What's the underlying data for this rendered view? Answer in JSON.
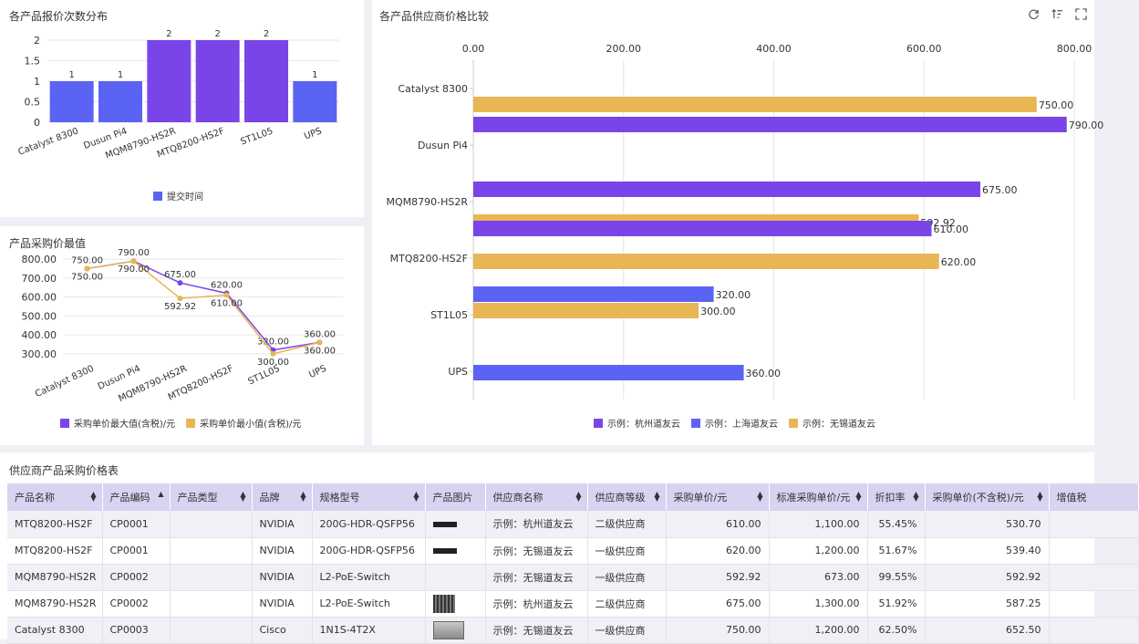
{
  "panel_titles": {
    "quote_count": "各产品报价次数分布",
    "price_extremes": "产品采购价最值",
    "supplier_compare": "各产品供应商价格比较",
    "price_table": "供应商产品采购价格表"
  },
  "colors": {
    "purple": "#7a45e8",
    "blue": "#5b63f5",
    "gold": "#e8b654",
    "header_bg": "#d9d2f0",
    "grid": "#e6e6e6"
  },
  "chart_data": [
    {
      "id": "quote_count",
      "type": "bar",
      "categories": [
        "Catalyst 8300",
        "Dusun Pi4",
        "MQM8790-HS2R",
        "MTQ8200-HS2F",
        "ST1L05",
        "UPS"
      ],
      "values": [
        1,
        1,
        2,
        2,
        2,
        1
      ],
      "value_labels": [
        "1",
        "1",
        "2",
        "2",
        "2",
        "1"
      ],
      "series_name": "提交时间",
      "y_ticks": [
        "0",
        "0.5",
        "1",
        "1.5",
        "2"
      ],
      "ylim": [
        0,
        2
      ],
      "grid": true,
      "legend": "bottom-center"
    },
    {
      "id": "price_extremes",
      "type": "line",
      "categories": [
        "Catalyst 8300",
        "Dusun Pi4",
        "MQM8790-HS2R",
        "MTQ8200-HS2F",
        "ST1L05",
        "UPS"
      ],
      "series": [
        {
          "name": "采购单价最大值(含税)/元",
          "values": [
            750,
            790,
            675,
            620,
            320,
            360
          ],
          "labels": [
            "750.00",
            "790.00",
            "675.00",
            "620.00",
            "320.00",
            "360.00"
          ]
        },
        {
          "name": "采购单价最小值(含税)/元",
          "values": [
            750,
            790,
            592.92,
            610,
            300,
            360
          ],
          "labels": [
            "750.00",
            "790.00",
            "592.92",
            "610.00",
            "300.00",
            "360.00"
          ]
        }
      ],
      "y_ticks": [
        "300.00",
        "400.00",
        "500.00",
        "600.00",
        "700.00",
        "800.00"
      ],
      "ylim": [
        280,
        820
      ],
      "grid": true,
      "legend": "bottom-center"
    },
    {
      "id": "supplier_compare",
      "type": "bar",
      "orientation": "horizontal",
      "categories": [
        "Catalyst 8300",
        "Dusun Pi4",
        "MQM8790-HS2R",
        "MTQ8200-HS2F",
        "ST1L05",
        "UPS"
      ],
      "series": [
        {
          "name": "示例：杭州道友云",
          "values": [
            null,
            790,
            675,
            610,
            null,
            null
          ]
        },
        {
          "name": "示例：上海道友云",
          "values": [
            null,
            null,
            null,
            null,
            320,
            360
          ]
        },
        {
          "name": "示例：无锡道友云",
          "values": [
            750,
            null,
            592.92,
            620,
            300,
            null
          ]
        }
      ],
      "bars": [
        {
          "category": "Catalyst 8300",
          "series": "示例：无锡道友云",
          "value": 750,
          "label": "750.00"
        },
        {
          "category": "Dusun Pi4",
          "series": "示例：杭州道友云",
          "value": 790,
          "label": "790.00"
        },
        {
          "category": "MQM8790-HS2R",
          "series": "示例：杭州道友云",
          "value": 675,
          "label": "675.00"
        },
        {
          "category": "MQM8790-HS2R",
          "series": "示例：无锡道友云",
          "value": 592.92,
          "label": "592.92"
        },
        {
          "category": "MTQ8200-HS2F",
          "series": "示例：杭州道友云",
          "value": 610,
          "label": "610.00"
        },
        {
          "category": "MTQ8200-HS2F",
          "series": "示例：无锡道友云",
          "value": 620,
          "label": "620.00"
        },
        {
          "category": "ST1L05",
          "series": "示例：上海道友云",
          "value": 320,
          "label": "320.00"
        },
        {
          "category": "ST1L05",
          "series": "示例：无锡道友云",
          "value": 300,
          "label": "300.00"
        },
        {
          "category": "UPS",
          "series": "示例：上海道友云",
          "value": 360,
          "label": "360.00"
        }
      ],
      "x_ticks": [
        "0.00",
        "200.00",
        "400.00",
        "600.00",
        "800.00"
      ],
      "xlim": [
        0,
        800
      ],
      "grid": true,
      "legend": "bottom-center"
    }
  ],
  "toolbar": {
    "refresh_icon": "refresh-icon",
    "sort_icon": "sort-icon",
    "fullscreen_icon": "fullscreen-icon"
  },
  "table": {
    "columns": [
      {
        "label": "产品名称",
        "sort": "both"
      },
      {
        "label": "产品编码",
        "sort": "asc"
      },
      {
        "label": "产品类型",
        "sort": "both"
      },
      {
        "label": "品牌",
        "sort": "both"
      },
      {
        "label": "规格型号",
        "sort": "both"
      },
      {
        "label": "产品图片",
        "sort": "none"
      },
      {
        "label": "供应商名称",
        "sort": "both"
      },
      {
        "label": "供应商等级",
        "sort": "both"
      },
      {
        "label": "采购单价/元",
        "sort": "both"
      },
      {
        "label": "标准采购单价/元",
        "sort": "both"
      },
      {
        "label": "折扣率",
        "sort": "both"
      },
      {
        "label": "采购单价(不含税)/元",
        "sort": "both"
      },
      {
        "label": "增值税",
        "sort": "none"
      }
    ],
    "rows": [
      {
        "name": "MTQ8200-HS2F",
        "code": "CP0001",
        "type": "",
        "brand": "NVIDIA",
        "spec": "200G-HDR-QSFP56",
        "image": "cable",
        "supplier": "示例：杭州道友云",
        "level": "二级供应商",
        "price": "610.00",
        "std_price": "1,100.00",
        "discount": "55.45%",
        "price_ex_tax": "530.70",
        "vat": ""
      },
      {
        "name": "MTQ8200-HS2F",
        "code": "CP0001",
        "type": "",
        "brand": "NVIDIA",
        "spec": "200G-HDR-QSFP56",
        "image": "cable",
        "supplier": "示例：无锡道友云",
        "level": "一级供应商",
        "price": "620.00",
        "std_price": "1,200.00",
        "discount": "51.67%",
        "price_ex_tax": "539.40",
        "vat": ""
      },
      {
        "name": "MQM8790-HS2R",
        "code": "CP0002",
        "type": "",
        "brand": "NVIDIA",
        "spec": "L2-PoE-Switch",
        "image": "",
        "supplier": "示例：无锡道友云",
        "level": "一级供应商",
        "price": "592.92",
        "std_price": "673.00",
        "discount": "99.55%",
        "price_ex_tax": "592.92",
        "vat": ""
      },
      {
        "name": "MQM8790-HS2R",
        "code": "CP0002",
        "type": "",
        "brand": "NVIDIA",
        "spec": "L2-PoE-Switch",
        "image": "switch",
        "supplier": "示例：杭州道友云",
        "level": "二级供应商",
        "price": "675.00",
        "std_price": "1,300.00",
        "discount": "51.92%",
        "price_ex_tax": "587.25",
        "vat": ""
      },
      {
        "name": "Catalyst 8300",
        "code": "CP0003",
        "type": "",
        "brand": "Cisco",
        "spec": "1N1S-4T2X",
        "image": "router",
        "supplier": "示例：无锡道友云",
        "level": "一级供应商",
        "price": "750.00",
        "std_price": "1,200.00",
        "discount": "62.50%",
        "price_ex_tax": "652.50",
        "vat": ""
      }
    ]
  }
}
